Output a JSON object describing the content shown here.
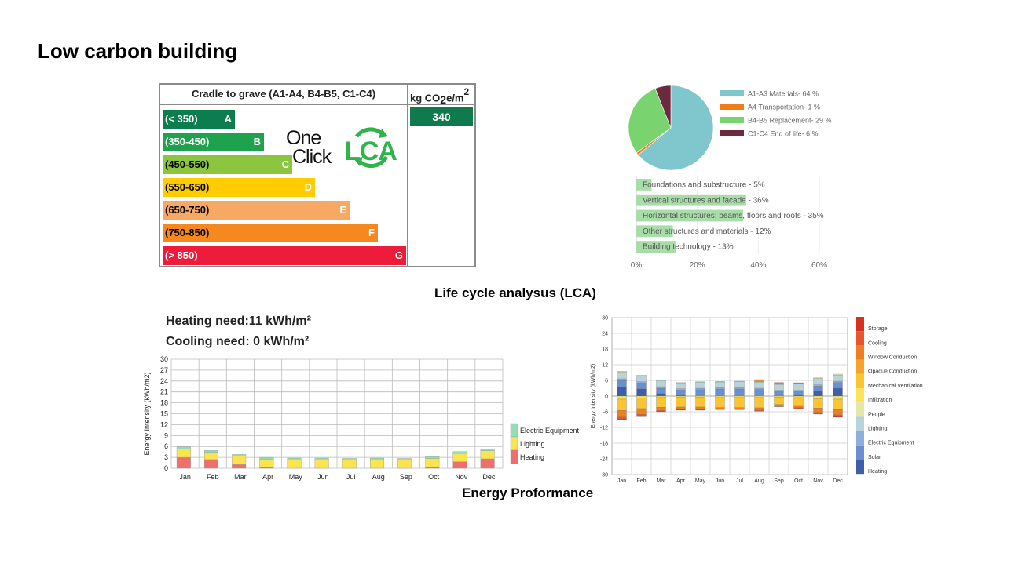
{
  "page": {
    "title": "Low carbon building",
    "lca_caption": "Life cycle analysus (LCA)",
    "energy_caption": "Energy Proformance"
  },
  "rating_label": {
    "header_left": "Cradle to grave (A1-A4, B4-B5, C1-C4)",
    "header_unit_base": "kg CO",
    "header_unit_sub": "2",
    "header_unit_rest": "e/m",
    "header_unit_sup": "2",
    "score": "340",
    "logo_line1": "One",
    "logo_line2": "Click",
    "logo_mark": "LCA",
    "bands": [
      {
        "range": "(< 350)",
        "letter": "A",
        "color": "#0b7d4f"
      },
      {
        "range": "(350-450)",
        "letter": "B",
        "color": "#1ea24d"
      },
      {
        "range": "(450-550)",
        "letter": "C",
        "color": "#8cc540"
      },
      {
        "range": "(550-650)",
        "letter": "D",
        "color": "#ffcc00"
      },
      {
        "range": "(650-750)",
        "letter": "E",
        "color": "#f6a964"
      },
      {
        "range": "(750-850)",
        "letter": "F",
        "color": "#f58920"
      },
      {
        "range": "(> 850)",
        "letter": "G",
        "color": "#ee1c3b"
      }
    ]
  },
  "chart_data": [
    {
      "type": "pie",
      "slices": [
        {
          "label": "A1-A3 Materials- 64 %",
          "value": 64,
          "color": "#7fc6cd"
        },
        {
          "label": "A4 Transportation- 1 %",
          "value": 1,
          "color": "#f07d1a"
        },
        {
          "label": "B4-B5 Replacement- 29 %",
          "value": 29,
          "color": "#79d36f"
        },
        {
          "label": "C1-C4 End of life- 6 %",
          "value": 6,
          "color": "#6b2a3e"
        }
      ],
      "legend_position": "right"
    },
    {
      "type": "bar",
      "orientation": "horizontal",
      "categories": [
        "Foundations and substructure - 5%",
        "Vertical structures and facade - 36%",
        "Horizontal structures: beams, floors and roofs - 35%",
        "Other structures and materials - 12%",
        "Building technology - 13%"
      ],
      "values": [
        5,
        36,
        35,
        12,
        13
      ],
      "xlim": [
        0,
        60
      ],
      "xticks": [
        "0%",
        "20%",
        "40%",
        "60%"
      ],
      "color": "#a8dca8"
    },
    {
      "type": "bar",
      "stacked": true,
      "heating_need": "Heating need:11 kWh/m²",
      "cooling_need": "Cooling need: 0 kWh/m²",
      "ylabel": "Energy Intensity (kWh/m2)",
      "ylim": [
        0,
        30
      ],
      "yticks": [
        "0",
        "3",
        "6",
        "9",
        "12",
        "15",
        "18",
        "21",
        "24",
        "27",
        "30"
      ],
      "categories": [
        "Jan",
        "Feb",
        "Mar",
        "Apr",
        "May",
        "Jun",
        "Jul",
        "Aug",
        "Sep",
        "Oct",
        "Nov",
        "Dec"
      ],
      "series": [
        {
          "name": "Heating",
          "color": "#ef6f6c",
          "values": [
            3.0,
            2.4,
            1.0,
            0.3,
            0.0,
            0.0,
            0.0,
            0.0,
            0.0,
            0.4,
            1.8,
            2.6
          ]
        },
        {
          "name": "Lighting",
          "color": "#fbe44d",
          "values": [
            2.3,
            2.0,
            2.3,
            2.2,
            2.3,
            2.3,
            2.2,
            2.3,
            2.2,
            2.3,
            2.3,
            2.2
          ]
        },
        {
          "name": "Electric Equipment",
          "color": "#8fdfb8",
          "values": [
            0.6,
            0.5,
            0.5,
            0.5,
            0.5,
            0.5,
            0.5,
            0.5,
            0.5,
            0.5,
            0.5,
            0.5
          ]
        }
      ],
      "legend_position": "right"
    },
    {
      "type": "bar",
      "stacked": true,
      "ylabel": "Energy Intensity (kWh/m2)",
      "ylim": [
        -30,
        30
      ],
      "yticks": [
        "30",
        "24",
        "18",
        "12",
        "6",
        "0",
        "-6",
        "-12",
        "-18",
        "-24",
        "-30"
      ],
      "categories": [
        "Jan",
        "Feb",
        "Mar",
        "Apr",
        "May",
        "Jun",
        "Jul",
        "Aug",
        "Sep",
        "Oct",
        "Nov",
        "Dec"
      ],
      "legend": [
        {
          "name": "Storage",
          "color": "#d7301f"
        },
        {
          "name": "Cooling",
          "color": "#e8552a"
        },
        {
          "name": "Window Conduction",
          "color": "#f07d22"
        },
        {
          "name": "Opaque Conduction",
          "color": "#f6a32a"
        },
        {
          "name": "Mechanical Ventilation",
          "color": "#fbc531"
        },
        {
          "name": "Infiltration",
          "color": "#fde25a"
        },
        {
          "name": "People",
          "color": "#e3e8a8"
        },
        {
          "name": "Lighting",
          "color": "#b8d3dc"
        },
        {
          "name": "Electric Equipment",
          "color": "#8eaedc"
        },
        {
          "name": "Solar",
          "color": "#6a8fd0"
        },
        {
          "name": "Heating",
          "color": "#3e5fa8"
        }
      ],
      "positive_series": [
        {
          "name": "Heating",
          "color": "#3e5fa8",
          "values": [
            3.5,
            2.8,
            1.0,
            0.3,
            0.0,
            0.0,
            0.0,
            0.0,
            0.0,
            0.4,
            2.0,
            3.0
          ]
        },
        {
          "name": "Solar",
          "color": "#6a8fd0",
          "values": [
            2.5,
            2.2,
            2.0,
            2.0,
            2.5,
            2.7,
            2.7,
            2.5,
            1.7,
            1.3,
            1.8,
            2.2
          ]
        },
        {
          "name": "Electric Equipment",
          "color": "#8eaedc",
          "values": [
            0.6,
            0.5,
            0.6,
            0.5,
            0.5,
            0.5,
            0.5,
            0.5,
            0.5,
            0.5,
            0.5,
            0.5
          ]
        },
        {
          "name": "Lighting",
          "color": "#b8d3dc",
          "values": [
            2.5,
            2.2,
            2.3,
            2.2,
            2.3,
            2.2,
            2.3,
            2.3,
            2.2,
            2.4,
            2.4,
            2.3
          ]
        },
        {
          "name": "People",
          "color": "#e3e8a8",
          "values": [
            0.4,
            0.3,
            0.3,
            0.2,
            0.2,
            0.2,
            0.2,
            0.2,
            0.2,
            0.2,
            0.3,
            0.4
          ]
        },
        {
          "name": "Opaque Conduction",
          "color": "#f6a32a",
          "values": [
            0.0,
            0.0,
            0.0,
            0.0,
            0.0,
            0.0,
            0.0,
            0.5,
            0.4,
            0.2,
            0.0,
            0.0
          ]
        },
        {
          "name": "Storage",
          "color": "#d7301f",
          "values": [
            0.0,
            0.0,
            0.0,
            0.0,
            0.0,
            0.0,
            0.0,
            0.3,
            0.2,
            0.1,
            0.0,
            0.0
          ]
        }
      ],
      "negative_series": [
        {
          "name": "Infiltration",
          "color": "#fde25a",
          "values": [
            -1.2,
            -0.8,
            -0.5,
            -0.4,
            -0.4,
            -0.5,
            -0.5,
            -0.5,
            -0.4,
            -0.6,
            -1.0,
            -1.2
          ]
        },
        {
          "name": "Mechanical Ventilation",
          "color": "#fbc531",
          "values": [
            -4.3,
            -4.0,
            -3.8,
            -3.8,
            -3.8,
            -3.9,
            -3.9,
            -4.0,
            -2.8,
            -3.0,
            -3.6,
            -4.0
          ]
        },
        {
          "name": "Window Conduction",
          "color": "#f07d22",
          "values": [
            -2.5,
            -2.2,
            -1.2,
            -0.8,
            -0.8,
            -0.6,
            -0.6,
            -0.9,
            -0.6,
            -0.8,
            -1.6,
            -2.0
          ]
        },
        {
          "name": "Cooling",
          "color": "#e8552a",
          "values": [
            -0.8,
            -0.6,
            -0.3,
            -0.2,
            -0.2,
            -0.1,
            -0.1,
            -0.2,
            -0.2,
            -0.3,
            -0.5,
            -0.6
          ]
        },
        {
          "name": "Storage",
          "color": "#d7301f",
          "values": [
            -0.3,
            -0.3,
            -0.2,
            -0.2,
            -0.2,
            -0.1,
            -0.1,
            -0.2,
            -0.1,
            -0.2,
            -0.2,
            -0.3
          ]
        }
      ]
    }
  ]
}
